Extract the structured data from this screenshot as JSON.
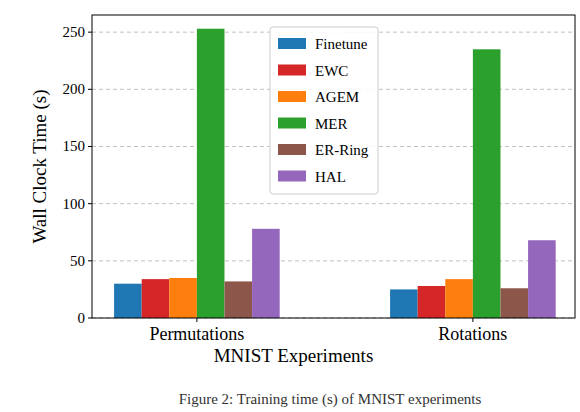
{
  "chart_data": {
    "type": "bar",
    "x_label": "MNIST Experiments",
    "y_label": "Wall Clock Time (s)",
    "caption": "Figure 2: Training time (s) of MNIST experiments",
    "categories": [
      "Permutations",
      "Rotations"
    ],
    "series": [
      {
        "name": "Finetune",
        "color": "#1f77b4",
        "values": [
          30,
          25
        ]
      },
      {
        "name": "EWC",
        "color": "#d62728",
        "values": [
          34,
          28
        ]
      },
      {
        "name": "AGEM",
        "color": "#ff7f0e",
        "values": [
          35,
          34
        ]
      },
      {
        "name": "MER",
        "color": "#2ca02c",
        "values": [
          253,
          235
        ]
      },
      {
        "name": "ER-Ring",
        "color": "#8c564b",
        "values": [
          32,
          26
        ]
      },
      {
        "name": "HAL",
        "color": "#9467bd",
        "values": [
          78,
          68
        ]
      }
    ],
    "ylim": [
      0,
      265
    ],
    "yticks": [
      0,
      50,
      100,
      150,
      200,
      250
    ],
    "grid": true,
    "legend": "upper center"
  }
}
